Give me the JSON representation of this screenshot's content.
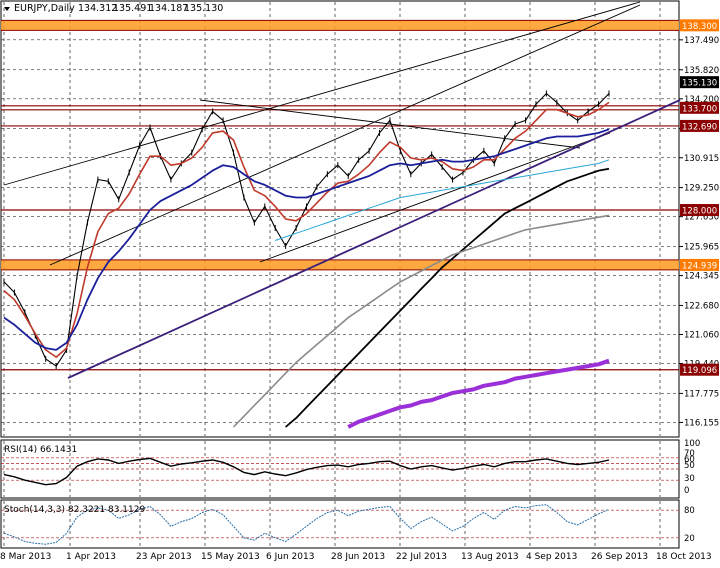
{
  "chart_data": {
    "type": "line",
    "symbol": "EURJPY,Daily",
    "ohlc_header": [
      "134.312",
      "135.491",
      "134.187",
      "135.130"
    ],
    "current_price": 135.13,
    "price_axis_ticks": [
      "137.490",
      "135.820",
      "134.200",
      "132.540",
      "130.915",
      "129.250",
      "127.630",
      "125.965",
      "124.345",
      "122.680",
      "121.060",
      "119.440",
      "117.775",
      "116.155"
    ],
    "price_ylim": [
      115.4,
      139.6
    ],
    "horizontal_levels": [
      {
        "price": 138.3,
        "label": "138.300",
        "color": "#ff8c1a",
        "style": "band"
      },
      {
        "price": 133.7,
        "label": "133.700",
        "color": "#8b0000",
        "style": "double"
      },
      {
        "price": 132.69,
        "label": "132.690",
        "color": "#8b0000",
        "style": "line"
      },
      {
        "price": 128.0,
        "label": "128.000",
        "color": "#8b0000",
        "style": "line"
      },
      {
        "price": 124.939,
        "label": "124.939",
        "color": "#ff8c1a",
        "style": "band"
      },
      {
        "price": 119.096,
        "label": "119.096",
        "color": "#8b0000",
        "style": "line"
      }
    ],
    "date_labels": [
      "8 Mar 2013",
      "1 Apr 2013",
      "23 Apr 2013",
      "15 May 2013",
      "6 Jun 2013",
      "28 Jun 2013",
      "22 Jul 2013",
      "13 Aug 2013",
      "4 Sep 2013",
      "26 Sep 2013",
      "18 Oct 2013"
    ],
    "series": [
      {
        "name": "price",
        "color": "#000000",
        "values": [
          124.0,
          123.4,
          122.3,
          121.0,
          119.7,
          119.3,
          120.2,
          124.3,
          127.3,
          129.7,
          129.6,
          128.6,
          130.1,
          131.6,
          132.6,
          131.0,
          129.7,
          130.6,
          131.2,
          132.5,
          133.5,
          133.0,
          131.2,
          128.7,
          127.3,
          128.2,
          127.0,
          126.0,
          127.0,
          128.2,
          129.3,
          130.0,
          130.5,
          129.9,
          130.8,
          131.3,
          132.3,
          133.0,
          131.3,
          130.0,
          130.6,
          131.1,
          130.4,
          129.7,
          130.1,
          130.8,
          131.3,
          130.6,
          132.0,
          132.8,
          133.0,
          133.9,
          134.5,
          134.0,
          133.4,
          133.0,
          133.5,
          133.9,
          134.5
        ]
      },
      {
        "name": "ema_fast",
        "color": "#c0392b",
        "values": [
          123.5,
          123.0,
          122.1,
          121.1,
          120.2,
          119.8,
          120.3,
          122.2,
          124.8,
          126.8,
          127.8,
          128.1,
          128.9,
          130.0,
          131.0,
          131.0,
          130.5,
          130.6,
          130.9,
          131.5,
          132.3,
          132.4,
          131.9,
          130.4,
          129.1,
          128.8,
          128.2,
          127.5,
          127.4,
          127.8,
          128.4,
          129.0,
          129.5,
          129.6,
          130.0,
          130.5,
          131.2,
          131.8,
          131.5,
          130.9,
          130.8,
          130.9,
          130.7,
          130.3,
          130.2,
          130.4,
          130.8,
          130.8,
          131.4,
          132.0,
          132.4,
          133.0,
          133.6,
          133.6,
          133.4,
          133.2,
          133.3,
          133.6,
          134.0
        ]
      },
      {
        "name": "ema_mid",
        "color": "#1b1f9a",
        "values": [
          122.0,
          121.6,
          121.1,
          120.6,
          120.3,
          120.2,
          120.6,
          121.6,
          123.0,
          124.2,
          125.1,
          125.7,
          126.4,
          127.2,
          128.0,
          128.5,
          128.8,
          129.1,
          129.4,
          129.8,
          130.2,
          130.5,
          130.4,
          130.0,
          129.6,
          129.4,
          129.1,
          128.8,
          128.7,
          128.7,
          128.9,
          129.1,
          129.3,
          129.5,
          129.7,
          129.9,
          130.2,
          130.5,
          130.6,
          130.5,
          130.6,
          130.7,
          130.8,
          130.7,
          130.7,
          130.8,
          130.9,
          131.0,
          131.2,
          131.4,
          131.6,
          131.8,
          132.0,
          132.1,
          132.1,
          132.1,
          132.2,
          132.3,
          132.5
        ]
      },
      {
        "name": "ema_slow_blue",
        "color": "#2aa7d6",
        "values": [
          null,
          null,
          null,
          null,
          null,
          null,
          null,
          null,
          null,
          null,
          null,
          null,
          null,
          null,
          null,
          null,
          null,
          null,
          null,
          null,
          null,
          null,
          null,
          null,
          null,
          null,
          126.3,
          126.5,
          126.7,
          126.9,
          127.1,
          127.3,
          127.5,
          127.7,
          127.9,
          128.1,
          128.3,
          128.5,
          128.7,
          128.8,
          128.9,
          129.0,
          129.1,
          129.2,
          129.3,
          129.4,
          129.5,
          129.6,
          129.7,
          129.8,
          129.9,
          130.0,
          130.1,
          130.2,
          130.3,
          130.4,
          130.5,
          130.6,
          130.8
        ]
      },
      {
        "name": "ma_black",
        "color": "#000000",
        "values": [
          null,
          null,
          null,
          null,
          null,
          null,
          null,
          null,
          null,
          null,
          null,
          null,
          null,
          null,
          null,
          null,
          null,
          null,
          null,
          null,
          null,
          null,
          null,
          null,
          null,
          null,
          null,
          115.9,
          116.4,
          117.0,
          117.6,
          118.2,
          118.8,
          119.4,
          120.0,
          120.6,
          121.2,
          121.8,
          122.4,
          123.0,
          123.6,
          124.2,
          124.8,
          125.3,
          125.8,
          126.3,
          126.8,
          127.3,
          127.8,
          128.1,
          128.4,
          128.7,
          129.0,
          129.3,
          129.6,
          129.8,
          130.0,
          130.2,
          130.3
        ]
      },
      {
        "name": "ma_gray",
        "color": "#8a8a8a",
        "values": [
          null,
          null,
          null,
          null,
          null,
          null,
          null,
          null,
          null,
          null,
          null,
          null,
          null,
          null,
          null,
          null,
          null,
          null,
          null,
          null,
          null,
          null,
          115.9,
          116.5,
          117.1,
          117.7,
          118.3,
          118.9,
          119.5,
          120.0,
          120.5,
          121.0,
          121.5,
          122.0,
          122.4,
          122.8,
          123.2,
          123.6,
          124.0,
          124.3,
          124.6,
          124.9,
          125.2,
          125.5,
          125.7,
          125.9,
          126.1,
          126.3,
          126.5,
          126.7,
          126.9,
          127.0,
          127.1,
          127.2,
          127.3,
          127.4,
          127.5,
          127.6,
          127.7
        ]
      },
      {
        "name": "ma_purple",
        "color": "#9b30d9",
        "values": [
          null,
          null,
          null,
          null,
          null,
          null,
          null,
          null,
          null,
          null,
          null,
          null,
          null,
          null,
          null,
          null,
          null,
          null,
          null,
          null,
          null,
          null,
          null,
          null,
          null,
          null,
          null,
          null,
          null,
          null,
          null,
          null,
          null,
          115.9,
          116.2,
          116.4,
          116.6,
          116.8,
          117.0,
          117.1,
          117.3,
          117.4,
          117.6,
          117.8,
          117.9,
          118.0,
          118.2,
          118.3,
          118.4,
          118.6,
          118.7,
          118.8,
          118.9,
          119.0,
          119.1,
          119.2,
          119.3,
          119.4,
          119.6
        ]
      }
    ],
    "indicators": [
      {
        "name": "RSI(14) 66.1431",
        "levels": [
          "100",
          "70",
          "60",
          "50",
          "30",
          "0"
        ],
        "level_lines": [
          70,
          60,
          50,
          30
        ],
        "ylim": [
          0,
          100
        ],
        "values": [
          40,
          36,
          30,
          26,
          22,
          24,
          35,
          55,
          63,
          68,
          66,
          60,
          64,
          67,
          69,
          62,
          55,
          59,
          61,
          64,
          66,
          62,
          54,
          44,
          40,
          45,
          41,
          38,
          43,
          49,
          53,
          56,
          57,
          54,
          58,
          60,
          63,
          64,
          56,
          50,
          54,
          56,
          52,
          48,
          51,
          55,
          58,
          54,
          60,
          63,
          63,
          66,
          68,
          64,
          60,
          58,
          60,
          62,
          66
        ]
      },
      {
        "name": "Stoch(14,3,3) 82.3221 83.1129",
        "levels": [
          "80",
          "20"
        ],
        "level_lines": [
          80,
          20
        ],
        "ylim": [
          0,
          100
        ],
        "values": [
          30,
          22,
          12,
          8,
          6,
          10,
          30,
          65,
          80,
          85,
          80,
          62,
          70,
          82,
          88,
          70,
          45,
          55,
          62,
          75,
          82,
          70,
          45,
          20,
          15,
          30,
          20,
          12,
          28,
          45,
          62,
          75,
          80,
          68,
          78,
          82,
          86,
          88,
          62,
          40,
          55,
          65,
          50,
          35,
          45,
          62,
          75,
          60,
          80,
          88,
          85,
          90,
          92,
          75,
          55,
          48,
          60,
          72,
          82
        ]
      }
    ]
  }
}
